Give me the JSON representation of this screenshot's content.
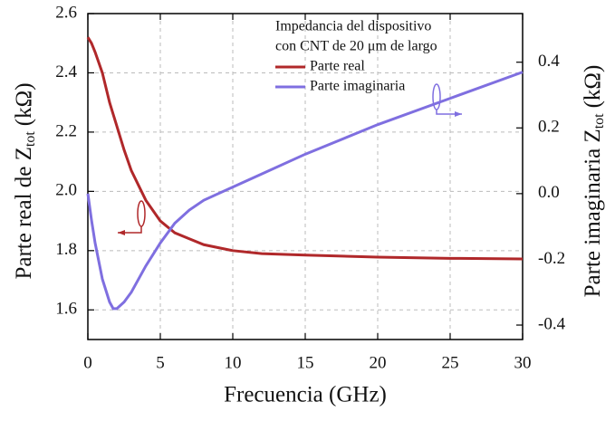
{
  "chart_data": {
    "type": "line",
    "xlabel": "Frecuencia (GHz)",
    "ylabel": {
      "main": "Parte real de Z",
      "subscript": "tot",
      "unit": "(kΩ)"
    },
    "y2label": {
      "main": "Parte imaginaria Z",
      "subscript": "tot",
      "unit": "(kΩ)"
    },
    "legend_title": [
      "Impedancia del dispositivo",
      "con CNT de 20 μm de largo"
    ],
    "legend": "upper right",
    "grid": true,
    "x": [
      0,
      0.25,
      0.5,
      1,
      1.5,
      1.75,
      2,
      2.5,
      3,
      4,
      5,
      6,
      7,
      8,
      10,
      12,
      15,
      20,
      25,
      30
    ],
    "series": [
      {
        "name": "Parte real",
        "color": "#b0282a",
        "values": [
          2.52,
          2.5,
          2.47,
          2.4,
          2.3,
          2.26,
          2.22,
          2.14,
          2.07,
          1.97,
          1.9,
          1.86,
          1.84,
          1.82,
          1.8,
          1.79,
          1.785,
          1.778,
          1.774,
          1.772
        ]
      },
      {
        "name": "Parte imaginaria",
        "color": "#7f6fe0",
        "axis": "y2",
        "values": [
          0.0,
          -0.08,
          -0.15,
          -0.26,
          -0.33,
          -0.35,
          -0.35,
          -0.33,
          -0.3,
          -0.22,
          -0.15,
          -0.09,
          -0.05,
          -0.02,
          0.02,
          0.06,
          0.12,
          0.21,
          0.29,
          0.37
        ]
      }
    ],
    "xlim": [
      0,
      30
    ],
    "xticks": [
      0,
      5,
      10,
      15,
      20,
      25,
      30
    ],
    "ylim": [
      1.5,
      2.6
    ],
    "yticks": [
      1.6,
      1.8,
      {
        "value": 2,
        "label": "2.0"
      },
      2.2,
      2.4,
      2.6
    ],
    "y2lim": [
      -0.444,
      0.548
    ],
    "y2ticks": [
      -0.4,
      -0.2,
      {
        "value": 0,
        "label": "0.0"
      },
      0.2,
      0.4
    ]
  }
}
